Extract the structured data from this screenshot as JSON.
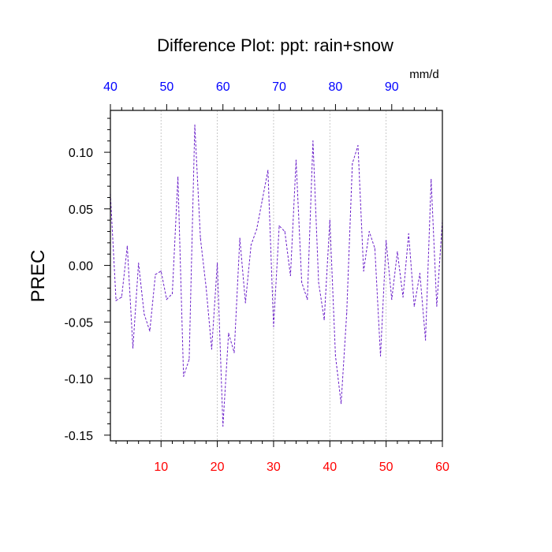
{
  "chart_data": {
    "type": "line",
    "title": "Difference Plot: ppt: rain+snow",
    "ylabel": "PREC",
    "units_label": "mm/d",
    "xlim": [
      1,
      60
    ],
    "ylim": [
      -0.155,
      0.137
    ],
    "bottom_ticks": [
      10,
      20,
      30,
      40,
      50,
      60
    ],
    "top_ticks": [
      40,
      50,
      60,
      70,
      80,
      90
    ],
    "top_axis_range": [
      40,
      99
    ],
    "y_ticks": [
      0.1,
      0.05,
      0.0,
      -0.05,
      -0.1,
      -0.15
    ],
    "y_tick_labels": [
      "0.10",
      "0.05",
      "0.00",
      "-0.05",
      "-0.10",
      "-0.15"
    ],
    "grid": {
      "vertical": true,
      "horizontal": false
    },
    "series": [
      {
        "color": "#6a1fc9",
        "line_style": "dashed",
        "x": [
          1,
          2,
          3,
          4,
          5,
          6,
          7,
          8,
          9,
          10,
          11,
          12,
          13,
          14,
          15,
          16,
          17,
          18,
          19,
          20,
          21,
          22,
          23,
          24,
          25,
          26,
          27,
          28,
          29,
          30,
          31,
          32,
          33,
          34,
          35,
          36,
          37,
          38,
          39,
          40,
          41,
          42,
          43,
          44,
          45,
          46,
          47,
          48,
          49,
          50,
          51,
          52,
          53,
          54,
          55,
          56,
          57,
          58,
          59,
          60
        ],
        "values": [
          0.063,
          -0.031,
          -0.028,
          0.017,
          -0.073,
          0.002,
          -0.043,
          -0.058,
          -0.008,
          -0.005,
          -0.03,
          -0.025,
          0.078,
          -0.098,
          -0.083,
          0.124,
          0.024,
          -0.019,
          -0.074,
          0.002,
          -0.142,
          -0.06,
          -0.077,
          0.024,
          -0.033,
          0.018,
          0.032,
          0.058,
          0.084,
          -0.054,
          0.035,
          0.03,
          -0.009,
          0.093,
          -0.015,
          -0.03,
          0.11,
          -0.015,
          -0.048,
          0.04,
          -0.08,
          -0.122,
          -0.042,
          0.09,
          0.106,
          -0.005,
          0.03,
          0.015,
          -0.08,
          0.022,
          -0.03,
          0.012,
          -0.028,
          0.028,
          -0.036,
          -0.007,
          -0.066,
          0.076,
          -0.036,
          0.04
        ]
      }
    ]
  }
}
